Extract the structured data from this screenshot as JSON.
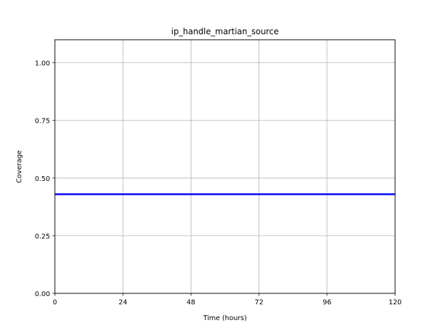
{
  "chart_data": {
    "type": "line",
    "title": "ip_handle_martian_source",
    "xlabel": "Time (hours)",
    "ylabel": "Coverage",
    "xlim": [
      0,
      120
    ],
    "ylim": [
      0,
      1.1
    ],
    "x_ticks": [
      0,
      24,
      48,
      72,
      96,
      120
    ],
    "x_tick_labels": [
      "0",
      "24",
      "48",
      "72",
      "96",
      "120"
    ],
    "y_ticks": [
      0,
      0.25,
      0.5,
      0.75,
      1.0
    ],
    "y_tick_labels": [
      "0.00",
      "0.25",
      "0.50",
      "0.75",
      "1.00"
    ],
    "grid": true,
    "series": [
      {
        "color": "#0000ff",
        "x": [
          0,
          120
        ],
        "y": [
          0.43,
          0.43
        ]
      }
    ]
  }
}
